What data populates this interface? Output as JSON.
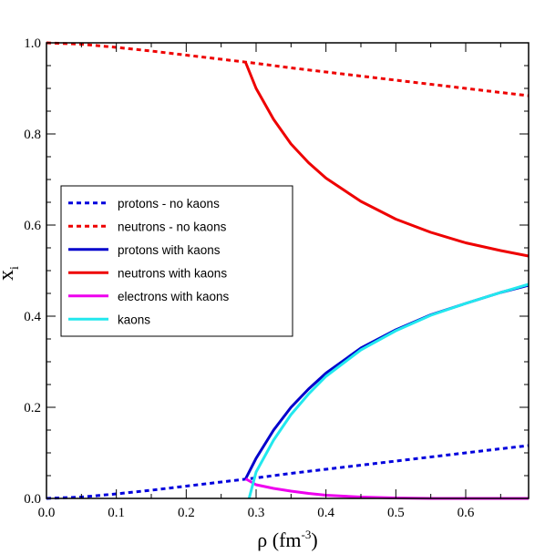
{
  "chart_data": {
    "type": "line",
    "title": "",
    "xlabel": "ρ (fm",
    "xlabel_superscript": "-3",
    "xlabel_suffix": ")",
    "ylabel": "x",
    "ylabel_subscript": "i",
    "xlim": [
      0.0,
      0.69
    ],
    "ylim": [
      0.0,
      1.0
    ],
    "x_ticks": [
      0.0,
      0.1,
      0.2,
      0.3,
      0.4,
      0.5,
      0.6
    ],
    "x_tick_labels": [
      "0.0",
      "0.1",
      "0.2",
      "0.3",
      "0.4",
      "0.5",
      "0.6"
    ],
    "y_ticks": [
      0.0,
      0.2,
      0.4,
      0.6,
      0.8,
      1.0
    ],
    "y_tick_labels": [
      "0.0",
      "0.2",
      "0.4",
      "0.6",
      "0.8",
      "1.0"
    ],
    "grid": false,
    "legend_position": "center-left",
    "series": [
      {
        "name": "protons - no kaons",
        "color": "#0000dd",
        "style": "dotted",
        "x": [
          0.0,
          0.05,
          0.1,
          0.15,
          0.2,
          0.25,
          0.3,
          0.35,
          0.4,
          0.45,
          0.5,
          0.55,
          0.6,
          0.65,
          0.69
        ],
        "y": [
          0.0,
          0.003,
          0.01,
          0.018,
          0.027,
          0.036,
          0.045,
          0.055,
          0.064,
          0.073,
          0.082,
          0.091,
          0.1,
          0.109,
          0.116
        ]
      },
      {
        "name": "neutrons - no kaons",
        "color": "#ee0000",
        "style": "dotted",
        "x": [
          0.0,
          0.05,
          0.1,
          0.15,
          0.2,
          0.25,
          0.3,
          0.35,
          0.4,
          0.45,
          0.5,
          0.55,
          0.6,
          0.65,
          0.69
        ],
        "y": [
          1.0,
          0.997,
          0.99,
          0.982,
          0.973,
          0.964,
          0.955,
          0.945,
          0.936,
          0.927,
          0.918,
          0.909,
          0.9,
          0.891,
          0.884
        ]
      },
      {
        "name": "protons with kaons",
        "color": "#0000cc",
        "style": "solid",
        "x": [
          0.285,
          0.3,
          0.325,
          0.35,
          0.375,
          0.4,
          0.45,
          0.5,
          0.55,
          0.6,
          0.65,
          0.69
        ],
        "y": [
          0.043,
          0.088,
          0.15,
          0.2,
          0.24,
          0.275,
          0.33,
          0.37,
          0.403,
          0.428,
          0.452,
          0.468
        ]
      },
      {
        "name": "neutrons with kaons",
        "color": "#ee0000",
        "style": "solid",
        "x": [
          0.285,
          0.3,
          0.325,
          0.35,
          0.375,
          0.4,
          0.45,
          0.5,
          0.55,
          0.6,
          0.65,
          0.69
        ],
        "y": [
          0.957,
          0.9,
          0.832,
          0.778,
          0.737,
          0.703,
          0.652,
          0.613,
          0.584,
          0.561,
          0.544,
          0.532
        ]
      },
      {
        "name": "electrons with kaons",
        "color": "#ee00ee",
        "style": "solid",
        "x": [
          0.285,
          0.3,
          0.325,
          0.35,
          0.375,
          0.4,
          0.45,
          0.5,
          0.55,
          0.6,
          0.65,
          0.69
        ],
        "y": [
          0.043,
          0.03,
          0.022,
          0.016,
          0.011,
          0.007,
          0.003,
          0.001,
          0.0,
          0.0,
          0.0,
          0.0
        ]
      },
      {
        "name": "kaons",
        "color": "#22e8ee",
        "style": "solid",
        "x": [
          0.29,
          0.3,
          0.325,
          0.35,
          0.375,
          0.4,
          0.45,
          0.5,
          0.55,
          0.6,
          0.65,
          0.69
        ],
        "y": [
          0.0,
          0.058,
          0.128,
          0.184,
          0.229,
          0.268,
          0.326,
          0.368,
          0.402,
          0.428,
          0.452,
          0.47
        ]
      }
    ]
  }
}
